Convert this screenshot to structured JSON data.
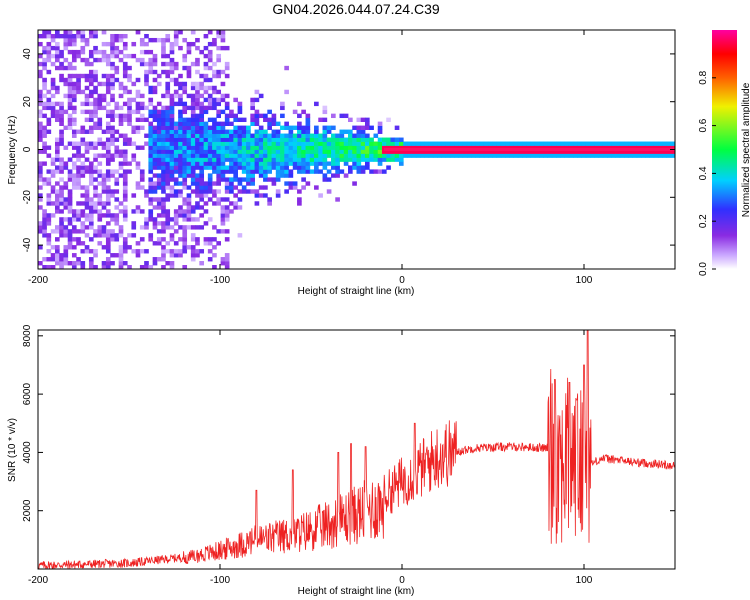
{
  "title": "GN04.2026.044.07.24.C39",
  "chart_data": [
    {
      "type": "heatmap",
      "name": "spectrogram",
      "xlabel": "Height of straight line (km)",
      "ylabel": "Frequency (Hz)",
      "xlim": [
        -200,
        150
      ],
      "ylim": [
        -50,
        50
      ],
      "xticks": [
        -200,
        -100,
        0,
        100
      ],
      "yticks": [
        -40,
        -20,
        0,
        20,
        40
      ],
      "colorbar": {
        "label": "Normalized spectral amplitude",
        "range": [
          0,
          1
        ],
        "ticks": [
          0.0,
          0.2,
          0.4,
          0.6,
          0.8
        ],
        "colors": [
          "#ffffff",
          "#8a2be2",
          "#3030ff",
          "#00d0ff",
          "#00ff40",
          "#f0f000",
          "#ff6000",
          "#ff0000",
          "#ff00a0"
        ]
      },
      "features": {
        "carrier_frequency_hz": 0,
        "noise_region_km": [
          -200,
          -95
        ],
        "transition_region_km": [
          -140,
          -20
        ],
        "clean_carrier_from_km": 0,
        "carrier_amplitude_after_0km": 0.95
      }
    },
    {
      "type": "line",
      "name": "snr",
      "xlabel": "Height of straight line (km)",
      "ylabel": "SNR (10 * v/v)",
      "xlim": [
        -200,
        150
      ],
      "ylim": [
        0,
        8200
      ],
      "xticks": [
        -200,
        -100,
        0,
        100
      ],
      "yticks": [
        2000,
        4000,
        6000,
        8000
      ],
      "color": "#ee2222",
      "envelope": {
        "x": [
          -200,
          -150,
          -120,
          -100,
          -80,
          -60,
          -40,
          -20,
          -10,
          0,
          10,
          20,
          40,
          60,
          80,
          90,
          100,
          110,
          130,
          150
        ],
        "y": [
          120,
          200,
          400,
          700,
          1100,
          1300,
          1700,
          2200,
          2500,
          3000,
          3400,
          3900,
          4150,
          4200,
          4150,
          3700,
          3500,
          3800,
          3650,
          3550
        ]
      },
      "spikes": [
        {
          "x": -80,
          "y": 2700
        },
        {
          "x": -60,
          "y": 3400
        },
        {
          "x": -35,
          "y": 4000
        },
        {
          "x": -28,
          "y": 4300
        },
        {
          "x": -20,
          "y": 4200
        },
        {
          "x": 7,
          "y": 5000
        },
        {
          "x": 84,
          "y": 6500
        },
        {
          "x": 92,
          "y": 6400
        },
        {
          "x": 96,
          "y": 5800
        },
        {
          "x": 100,
          "y": 7000
        },
        {
          "x": 102,
          "y": 8200
        }
      ]
    }
  ]
}
